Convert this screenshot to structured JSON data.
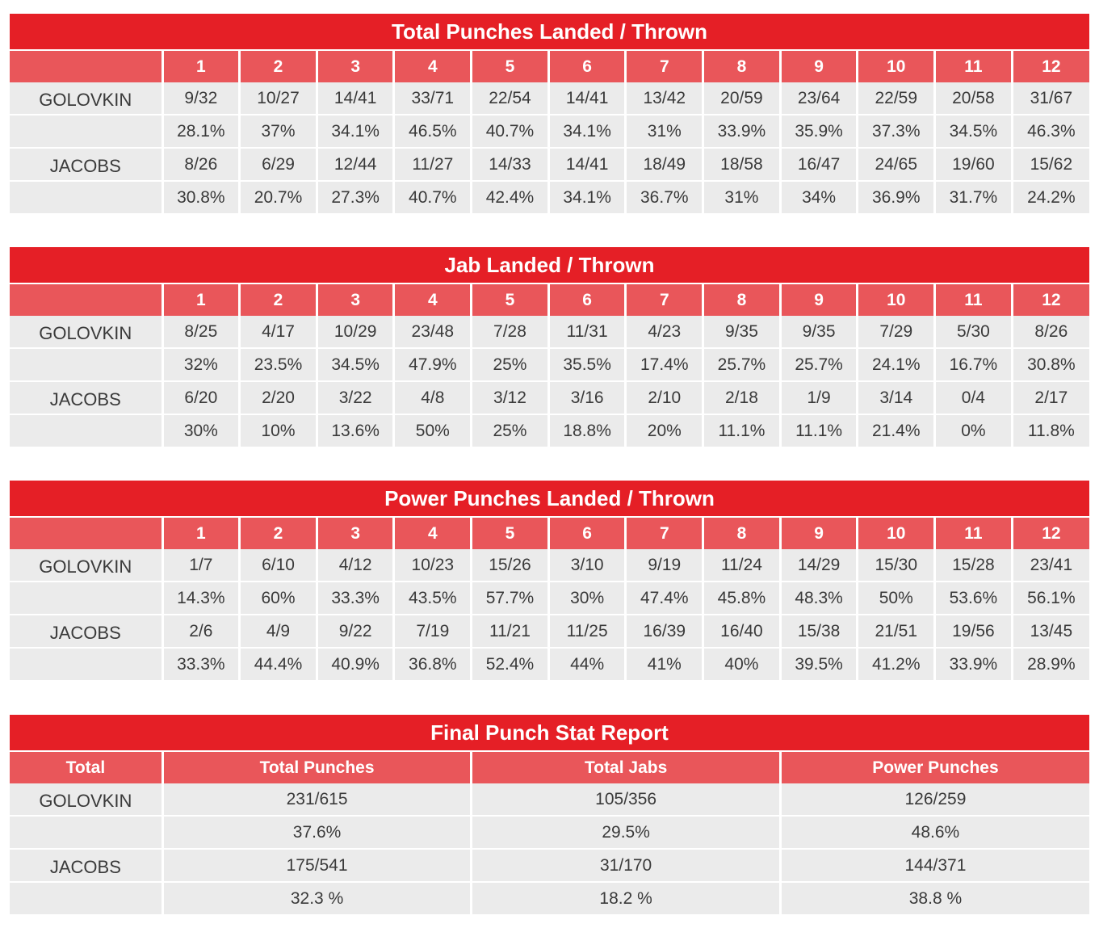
{
  "sections": [
    {
      "title": "Total Punches Landed / Thrown",
      "rounds": [
        "1",
        "2",
        "3",
        "4",
        "5",
        "6",
        "7",
        "8",
        "9",
        "10",
        "11",
        "12"
      ],
      "fighters": [
        {
          "name": "GOLOVKIN",
          "landed_thrown": [
            "9/32",
            "10/27",
            "14/41",
            "33/71",
            "22/54",
            "14/41",
            "13/42",
            "20/59",
            "23/64",
            "22/59",
            "20/58",
            "31/67"
          ],
          "pct": [
            "28.1%",
            "37%",
            "34.1%",
            "46.5%",
            "40.7%",
            "34.1%",
            "31%",
            "33.9%",
            "35.9%",
            "37.3%",
            "34.5%",
            "46.3%"
          ]
        },
        {
          "name": "JACOBS",
          "landed_thrown": [
            "8/26",
            "6/29",
            "12/44",
            "11/27",
            "14/33",
            "14/41",
            "18/49",
            "18/58",
            "16/47",
            "24/65",
            "19/60",
            "15/62"
          ],
          "pct": [
            "30.8%",
            "20.7%",
            "27.3%",
            "40.7%",
            "42.4%",
            "34.1%",
            "36.7%",
            "31%",
            "34%",
            "36.9%",
            "31.7%",
            "24.2%"
          ]
        }
      ]
    },
    {
      "title": "Jab Landed / Thrown",
      "rounds": [
        "1",
        "2",
        "3",
        "4",
        "5",
        "6",
        "7",
        "8",
        "9",
        "10",
        "11",
        "12"
      ],
      "fighters": [
        {
          "name": "GOLOVKIN",
          "landed_thrown": [
            "8/25",
            "4/17",
            "10/29",
            "23/48",
            "7/28",
            "11/31",
            "4/23",
            "9/35",
            "9/35",
            "7/29",
            "5/30",
            "8/26"
          ],
          "pct": [
            "32%",
            "23.5%",
            "34.5%",
            "47.9%",
            "25%",
            "35.5%",
            "17.4%",
            "25.7%",
            "25.7%",
            "24.1%",
            "16.7%",
            "30.8%"
          ]
        },
        {
          "name": "JACOBS",
          "landed_thrown": [
            "6/20",
            "2/20",
            "3/22",
            "4/8",
            "3/12",
            "3/16",
            "2/10",
            "2/18",
            "1/9",
            "3/14",
            "0/4",
            "2/17"
          ],
          "pct": [
            "30%",
            "10%",
            "13.6%",
            "50%",
            "25%",
            "18.8%",
            "20%",
            "11.1%",
            "11.1%",
            "21.4%",
            "0%",
            "11.8%"
          ]
        }
      ]
    },
    {
      "title": "Power Punches Landed / Thrown",
      "rounds": [
        "1",
        "2",
        "3",
        "4",
        "5",
        "6",
        "7",
        "8",
        "9",
        "10",
        "11",
        "12"
      ],
      "fighters": [
        {
          "name": "GOLOVKIN",
          "landed_thrown": [
            "1/7",
            "6/10",
            "4/12",
            "10/23",
            "15/26",
            "3/10",
            "9/19",
            "11/24",
            "14/29",
            "15/30",
            "15/28",
            "23/41"
          ],
          "pct": [
            "14.3%",
            "60%",
            "33.3%",
            "43.5%",
            "57.7%",
            "30%",
            "47.4%",
            "45.8%",
            "48.3%",
            "50%",
            "53.6%",
            "56.1%"
          ]
        },
        {
          "name": "JACOBS",
          "landed_thrown": [
            "2/6",
            "4/9",
            "9/22",
            "7/19",
            "11/21",
            "11/25",
            "16/39",
            "16/40",
            "15/38",
            "21/51",
            "19/56",
            "13/45"
          ],
          "pct": [
            "33.3%",
            "44.4%",
            "40.9%",
            "36.8%",
            "52.4%",
            "44%",
            "41%",
            "40%",
            "39.5%",
            "41.2%",
            "33.9%",
            "28.9%"
          ]
        }
      ]
    }
  ],
  "final": {
    "title": "Final Punch Stat Report",
    "headers": [
      "Total",
      "Total Punches",
      "Total Jabs",
      "Power Punches"
    ],
    "fighters": [
      {
        "name": "GOLOVKIN",
        "landed_thrown": [
          "231/615",
          "105/356",
          "126/259"
        ],
        "pct": [
          "37.6%",
          "29.5%",
          "48.6%"
        ]
      },
      {
        "name": "JACOBS",
        "landed_thrown": [
          "175/541",
          "31/170",
          "144/371"
        ],
        "pct": [
          "32.3 %",
          "18.2 %",
          "38.8 %"
        ]
      }
    ]
  }
}
